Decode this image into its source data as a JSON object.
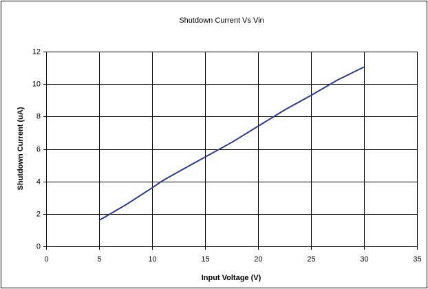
{
  "chart_data": {
    "type": "line",
    "title": "Shutdown Current Vs Vin",
    "x_label": "Input Voltage (V)",
    "y_label": "Shutdown Current (uA)",
    "x": [
      5,
      7.5,
      10,
      11,
      12.5,
      15,
      17.5,
      20,
      22.5,
      25,
      27.5,
      30
    ],
    "series": [
      {
        "name": "Shutdown Current",
        "color": "#2b3990",
        "values": [
          1.6,
          2.55,
          3.6,
          4.05,
          4.6,
          5.5,
          6.4,
          7.4,
          8.4,
          9.3,
          10.25,
          11.05
        ]
      }
    ],
    "xlim": [
      0,
      35
    ],
    "xticks": [
      0,
      5,
      10,
      15,
      20,
      25,
      30,
      35
    ],
    "ylim": [
      0,
      12
    ],
    "yticks": [
      0,
      2,
      4,
      6,
      8,
      10,
      12
    ],
    "grid": true
  }
}
